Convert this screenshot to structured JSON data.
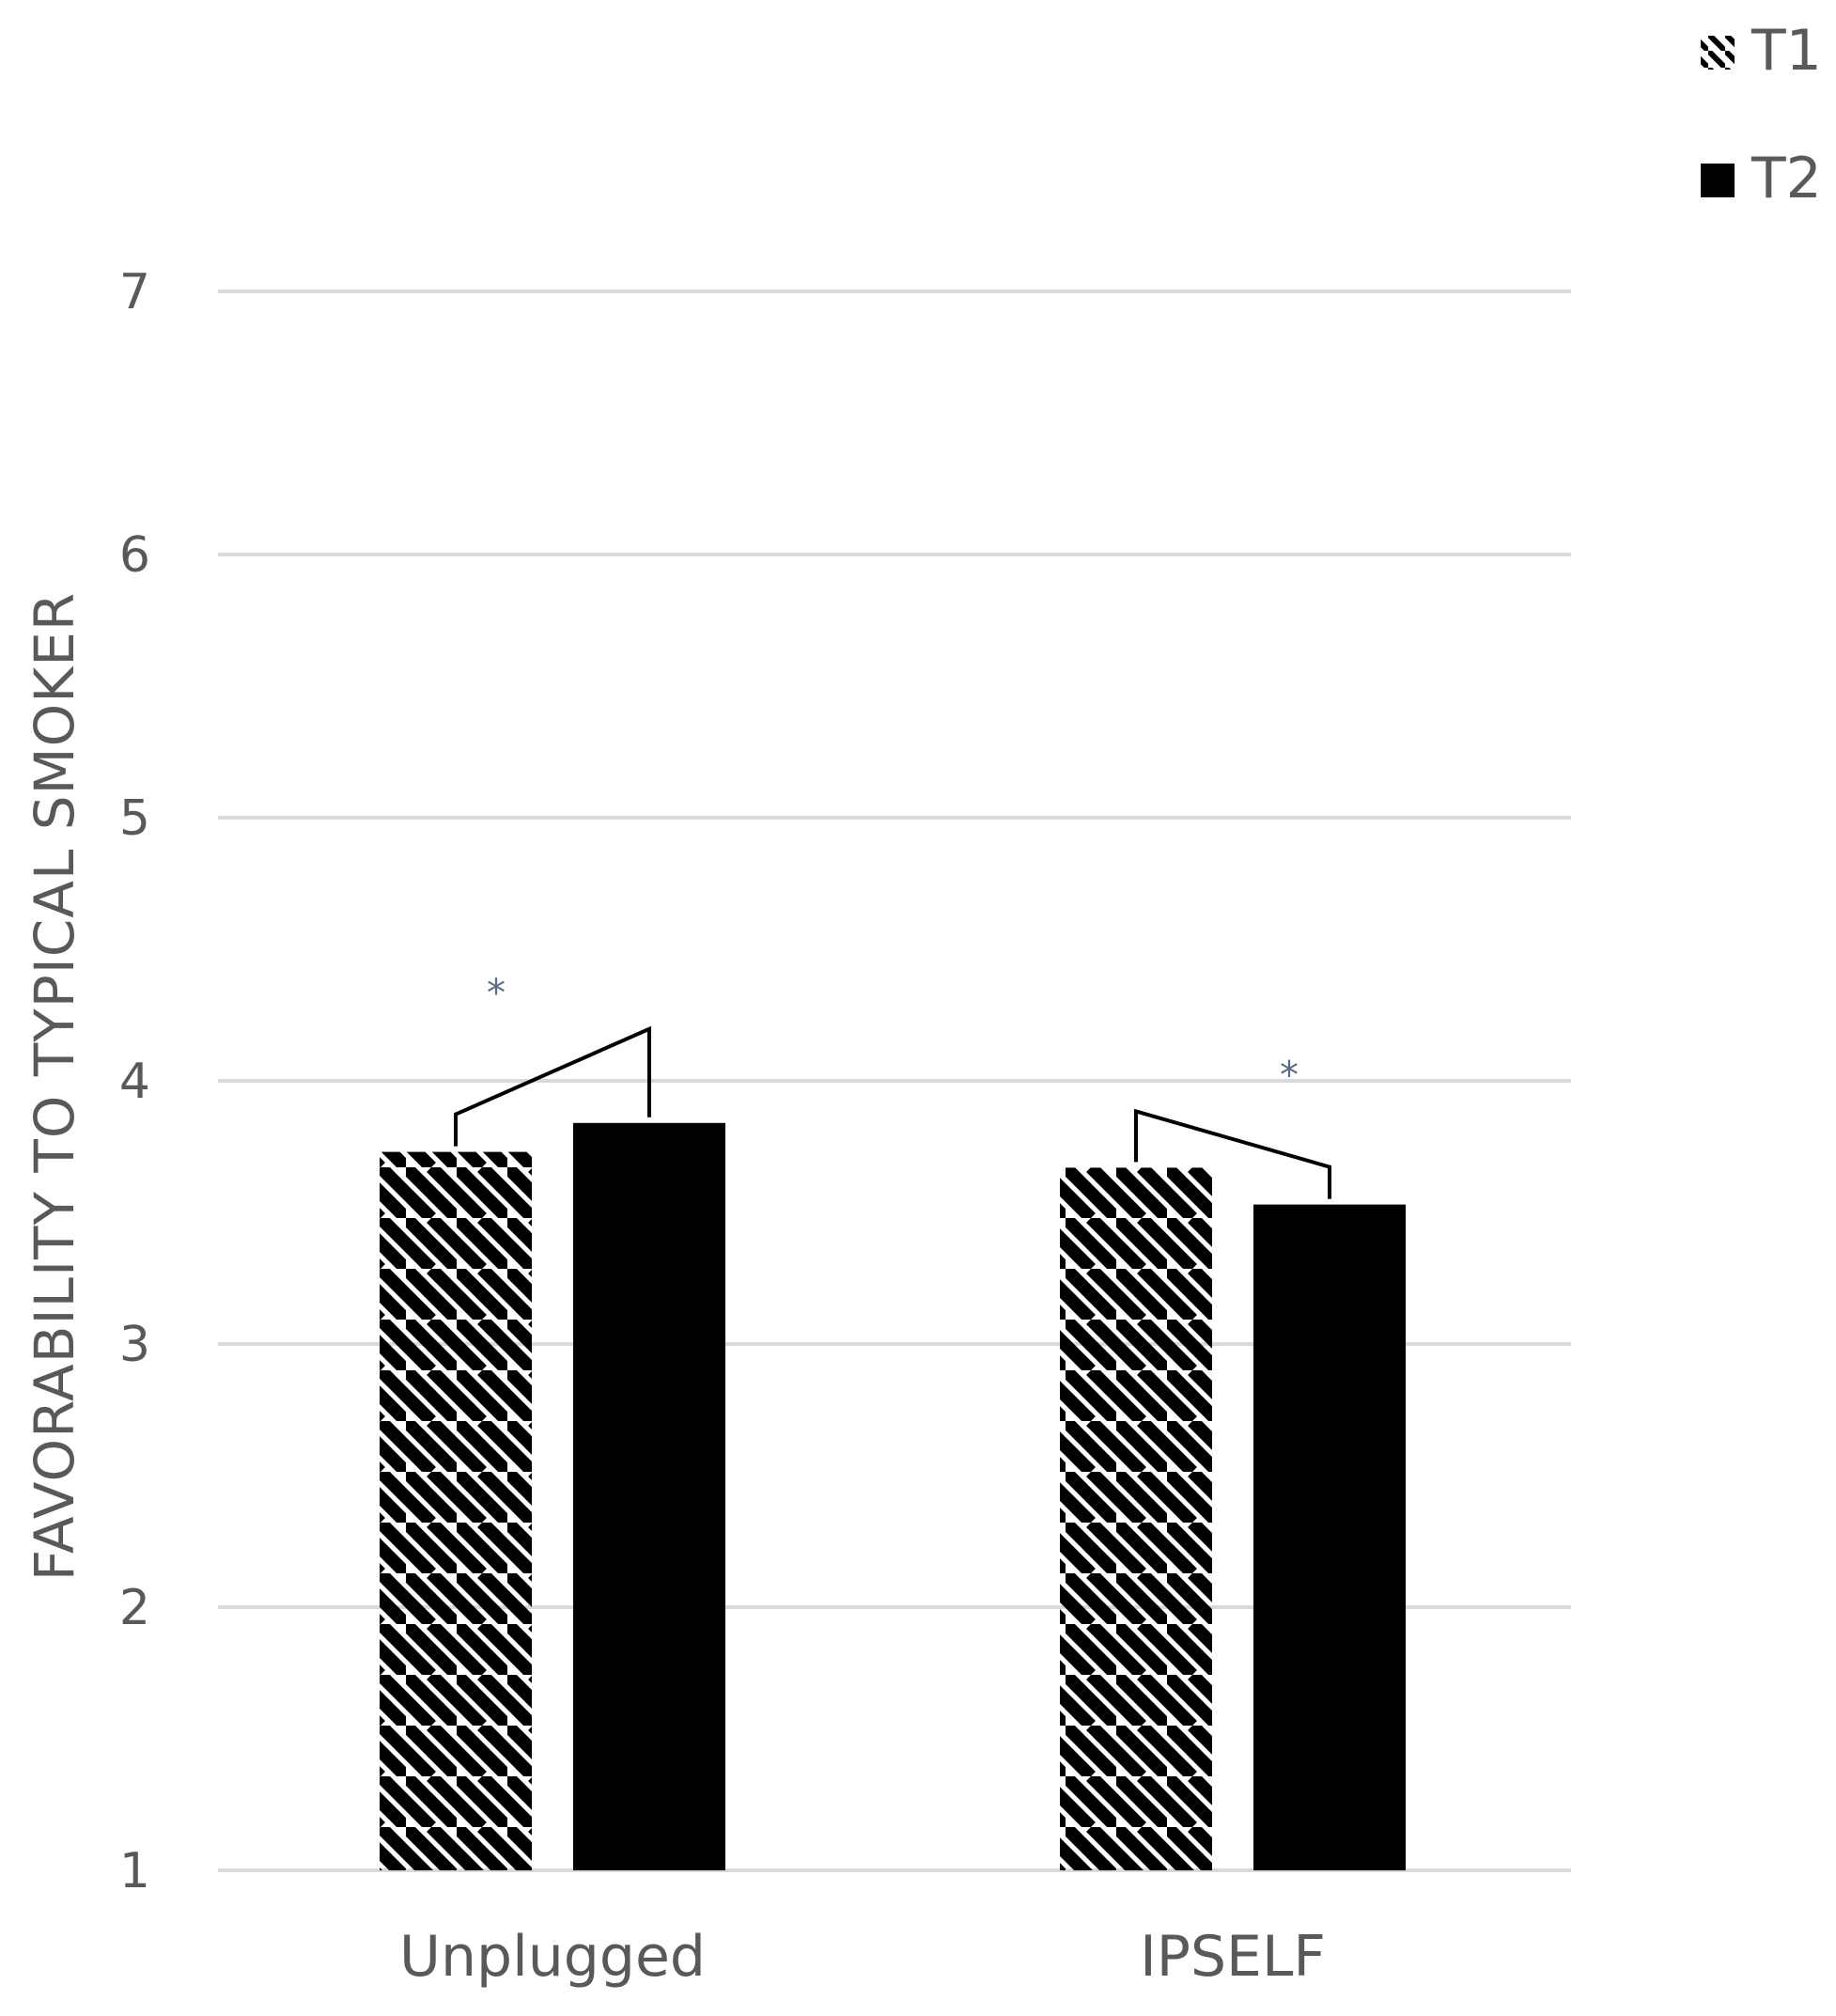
{
  "chart_data": {
    "type": "bar",
    "title": "",
    "xlabel": "",
    "ylabel": "FAVORABILITY TO TYPICAL SMOKER",
    "ylim": [
      1,
      7
    ],
    "yticks": [
      "1",
      "2",
      "3",
      "4",
      "5",
      "6",
      "7"
    ],
    "categories": [
      "Unplugged",
      "IPSELF"
    ],
    "series": [
      {
        "name": "T1",
        "values": [
          3.73,
          3.67
        ],
        "pattern": "diagonal-hatch",
        "color": "#000000"
      },
      {
        "name": "T2",
        "values": [
          3.84,
          3.53
        ],
        "pattern": "solid",
        "color": "#000000"
      }
    ],
    "annotations": [
      {
        "category": "Unplugged",
        "text": "*"
      },
      {
        "category": "IPSELF",
        "text": "*"
      }
    ],
    "grid": true,
    "legend_position": "top-right",
    "colors": {
      "gridline": "#d9d9d9",
      "text": "#595959",
      "bar": "#000000",
      "significance": "#5b6b8a"
    }
  }
}
